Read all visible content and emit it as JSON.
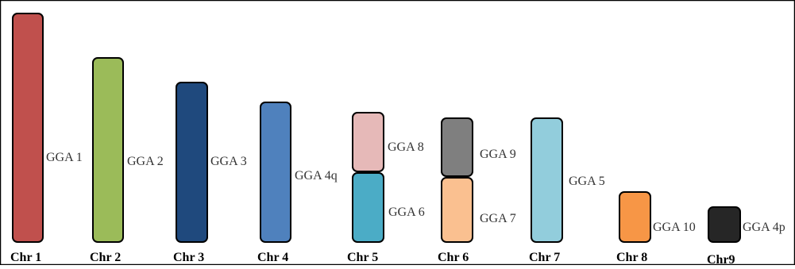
{
  "chromosomes": [
    {
      "label": "Chr 1",
      "segments": [
        {
          "name": "GGA 1",
          "color": "#c0504d"
        }
      ]
    },
    {
      "label": "Chr 2",
      "segments": [
        {
          "name": "GGA 2",
          "color": "#9bbb59"
        }
      ]
    },
    {
      "label": "Chr 3",
      "segments": [
        {
          "name": "GGA 3",
          "color": "#1f497d"
        }
      ]
    },
    {
      "label": "Chr 4",
      "segments": [
        {
          "name": "GGA 4q",
          "color": "#4f81bd"
        }
      ]
    },
    {
      "label": "Chr 5",
      "segments": [
        {
          "name": "GGA 8",
          "color": "#e6b9b8"
        },
        {
          "name": "GGA 6",
          "color": "#4bacc6"
        }
      ]
    },
    {
      "label": "Chr 6",
      "segments": [
        {
          "name": "GGA 9",
          "color": "#7f7f7f"
        },
        {
          "name": "GGA 7",
          "color": "#fac090"
        }
      ]
    },
    {
      "label": "Chr 7",
      "segments": [
        {
          "name": "GGA 5",
          "color": "#92cddc"
        }
      ]
    },
    {
      "label": "Chr 8",
      "segments": [
        {
          "name": "GGA 10",
          "color": "#f79646"
        }
      ]
    },
    {
      "label": "Chr9",
      "segments": [
        {
          "name": "GGA 4p",
          "color": "#262626"
        }
      ]
    }
  ]
}
